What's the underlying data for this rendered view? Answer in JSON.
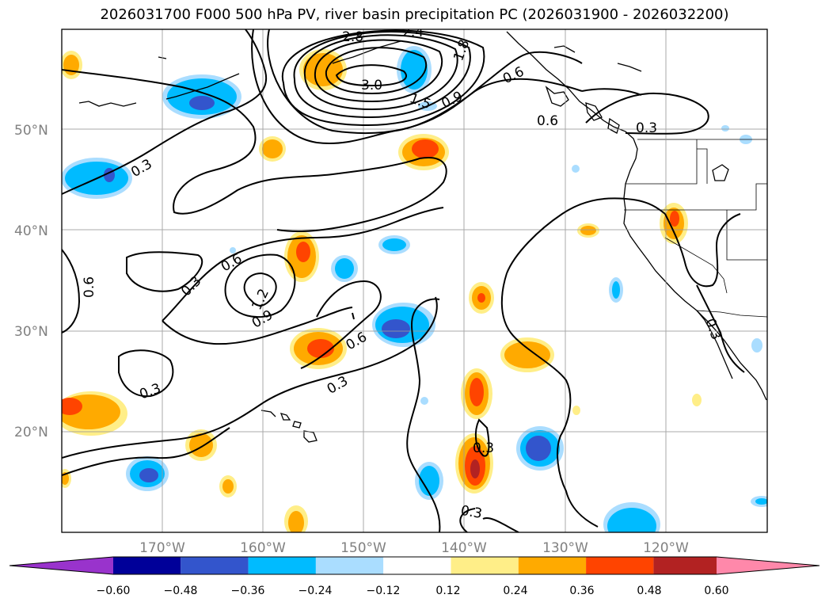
{
  "title": "2026031700 F000 500 hPa PV, river basin precipitation PC (2026031900 - 2026032200)",
  "lat_labels": [
    "50°N",
    "40°N",
    "30°N",
    "20°N"
  ],
  "lon_labels": [
    "170°W",
    "160°W",
    "150°W",
    "140°W",
    "130°W",
    "120°W"
  ],
  "contour_labels": [
    "3.0",
    "2.4",
    "2.8",
    "1.8",
    "1.5",
    "0.9",
    "0.6",
    "0.6",
    "0.3",
    "0.3",
    "0.6",
    "0.3",
    "1.2",
    "0.9",
    "0.6",
    "0.3",
    "0.3",
    "0.6",
    "0.3",
    "0.3",
    "0.3"
  ],
  "colorbar": {
    "tick_labels": [
      "−0.60",
      "−0.48",
      "−0.36",
      "−0.24",
      "−0.12",
      "0.12",
      "0.24",
      "0.36",
      "0.48",
      "0.60"
    ],
    "colors": [
      "#9933cc",
      "#000099",
      "#3355cc",
      "#00bbff",
      "#aaddff",
      "#ffffff",
      "#ffee88",
      "#ffaa00",
      "#ff4400",
      "#b22222",
      "#ff88aa"
    ]
  },
  "map_data": {
    "lon_range": [
      -180,
      -110
    ],
    "lat_range": [
      10,
      60
    ],
    "grid": true
  }
}
